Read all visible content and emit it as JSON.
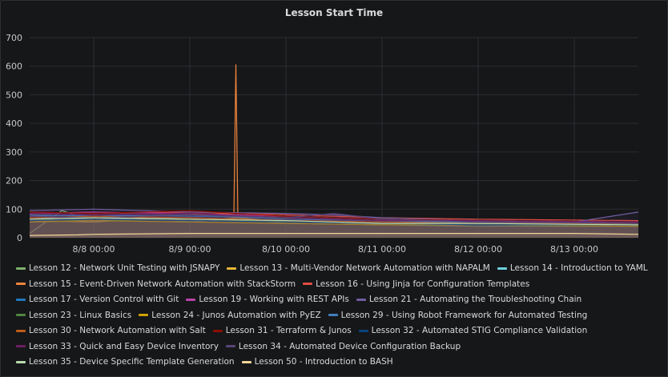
{
  "panel": {
    "title": "Lesson Start Time"
  },
  "chart_data": {
    "type": "line",
    "title": "Lesson Start Time",
    "ylim": [
      0,
      700
    ],
    "yticks": [
      0,
      100,
      200,
      300,
      400,
      500,
      600,
      700
    ],
    "xlim": [
      "2018-08-07 08:00",
      "2018-08-13 16:00"
    ],
    "xticks": [
      {
        "t": "2018-08-08 00:00",
        "label": "8/8 00:00"
      },
      {
        "t": "2018-08-09 00:00",
        "label": "8/9 00:00"
      },
      {
        "t": "2018-08-10 00:00",
        "label": "8/10 00:00"
      },
      {
        "t": "2018-08-11 00:00",
        "label": "8/11 00:00"
      },
      {
        "t": "2018-08-12 00:00",
        "label": "8/12 00:00"
      },
      {
        "t": "2018-08-13 00:00",
        "label": "8/13 00:00"
      }
    ],
    "grid": true,
    "legend_position": "bottom",
    "series": [
      {
        "name": "Lesson 12 - Network Unit Testing with JSNAPY",
        "color": "#7eb26d",
        "points": [
          [
            "2018-08-07 08:00",
            15
          ],
          [
            "2018-08-07 16:00",
            95
          ],
          [
            "2018-08-08 00:00",
            60
          ],
          [
            "2018-08-08 12:00",
            70
          ],
          [
            "2018-08-09 00:00",
            55
          ],
          [
            "2018-08-09 12:00",
            65
          ],
          [
            "2018-08-10 00:00",
            50
          ],
          [
            "2018-08-11 00:00",
            45
          ],
          [
            "2018-08-12 00:00",
            40
          ],
          [
            "2018-08-13 16:00",
            40
          ]
        ]
      },
      {
        "name": "Lesson 13 - Multi-Vendor Network Automation with NAPALM",
        "color": "#eab839",
        "points": [
          [
            "2018-08-07 08:00",
            60
          ],
          [
            "2018-08-08 00:00",
            55
          ],
          [
            "2018-08-08 12:00",
            65
          ],
          [
            "2018-08-09 00:00",
            60
          ],
          [
            "2018-08-09 12:00",
            70
          ],
          [
            "2018-08-10 00:00",
            55
          ],
          [
            "2018-08-11 00:00",
            50
          ],
          [
            "2018-08-12 00:00",
            50
          ],
          [
            "2018-08-13 00:00",
            45
          ],
          [
            "2018-08-13 16:00",
            50
          ]
        ]
      },
      {
        "name": "Lesson 14 - Introduction to YAML",
        "color": "#6ed0e0",
        "points": [
          [
            "2018-08-07 08:00",
            70
          ],
          [
            "2018-08-08 00:00",
            65
          ],
          [
            "2018-08-09 00:00",
            70
          ],
          [
            "2018-08-10 00:00",
            60
          ],
          [
            "2018-08-11 00:00",
            55
          ],
          [
            "2018-08-12 00:00",
            55
          ],
          [
            "2018-08-13 16:00",
            50
          ]
        ]
      },
      {
        "name": "Lesson 15 - Event-Driven Network Automation with StackStorm",
        "color": "#ef843c",
        "points": [
          [
            "2018-08-07 08:00",
            80
          ],
          [
            "2018-08-08 00:00",
            75
          ],
          [
            "2018-08-09 00:00",
            80
          ],
          [
            "2018-08-09 11:00",
            85
          ],
          [
            "2018-08-09 11:30",
            605
          ],
          [
            "2018-08-09 12:00",
            80
          ],
          [
            "2018-08-10 00:00",
            75
          ],
          [
            "2018-08-11 00:00",
            65
          ],
          [
            "2018-08-12 00:00",
            60
          ],
          [
            "2018-08-13 16:00",
            55
          ]
        ]
      },
      {
        "name": "Lesson 16 - Using Jinja for Configuration Templates",
        "color": "#e24d42",
        "points": [
          [
            "2018-08-07 08:00",
            90
          ],
          [
            "2018-08-08 00:00",
            85
          ],
          [
            "2018-08-09 00:00",
            90
          ],
          [
            "2018-08-10 00:00",
            80
          ],
          [
            "2018-08-11 00:00",
            70
          ],
          [
            "2018-08-12 00:00",
            65
          ],
          [
            "2018-08-13 16:00",
            60
          ]
        ]
      },
      {
        "name": "Lesson 17 - Version Control with Git",
        "color": "#1f78c1",
        "points": [
          [
            "2018-08-07 08:00",
            75
          ],
          [
            "2018-08-08 00:00",
            80
          ],
          [
            "2018-08-09 00:00",
            75
          ],
          [
            "2018-08-10 00:00",
            70
          ],
          [
            "2018-08-11 00:00",
            60
          ],
          [
            "2018-08-12 00:00",
            55
          ],
          [
            "2018-08-13 16:00",
            55
          ]
        ]
      },
      {
        "name": "Lesson 19 - Working with REST APIs",
        "color": "#ba43a9",
        "points": [
          [
            "2018-08-07 08:00",
            85
          ],
          [
            "2018-08-08 00:00",
            90
          ],
          [
            "2018-08-09 00:00",
            85
          ],
          [
            "2018-08-10 00:00",
            75
          ],
          [
            "2018-08-11 00:00",
            65
          ],
          [
            "2018-08-12 00:00",
            60
          ],
          [
            "2018-08-13 16:00",
            55
          ]
        ]
      },
      {
        "name": "Lesson 21 - Automating the Troubleshooting Chain",
        "color": "#705da0",
        "points": [
          [
            "2018-08-07 08:00",
            95
          ],
          [
            "2018-08-08 00:00",
            100
          ],
          [
            "2018-08-09 00:00",
            90
          ],
          [
            "2018-08-10 00:00",
            85
          ],
          [
            "2018-08-10 12:00",
            80
          ],
          [
            "2018-08-11 00:00",
            70
          ],
          [
            "2018-08-12 00:00",
            60
          ],
          [
            "2018-08-13 00:00",
            55
          ],
          [
            "2018-08-13 16:00",
            90
          ]
        ]
      },
      {
        "name": "Lesson 23 - Linux Basics",
        "color": "#508642",
        "points": [
          [
            "2018-08-07 08:00",
            65
          ],
          [
            "2018-08-08 00:00",
            60
          ],
          [
            "2018-08-09 00:00",
            65
          ],
          [
            "2018-08-10 00:00",
            55
          ],
          [
            "2018-08-11 00:00",
            50
          ],
          [
            "2018-08-12 00:00",
            45
          ],
          [
            "2018-08-13 16:00",
            45
          ]
        ]
      },
      {
        "name": "Lesson 24 - Junos Automation with PyEZ",
        "color": "#cca300",
        "points": [
          [
            "2018-08-07 08:00",
            55
          ],
          [
            "2018-08-08 00:00",
            60
          ],
          [
            "2018-08-09 00:00",
            55
          ],
          [
            "2018-08-10 00:00",
            50
          ],
          [
            "2018-08-11 00:00",
            45
          ],
          [
            "2018-08-12 00:00",
            45
          ],
          [
            "2018-08-13 16:00",
            40
          ]
        ]
      },
      {
        "name": "Lesson 29 - Using Robot Framework for Automated Testing",
        "color": "#447ebc",
        "points": [
          [
            "2018-08-07 08:00",
            80
          ],
          [
            "2018-08-08 00:00",
            75
          ],
          [
            "2018-08-09 00:00",
            80
          ],
          [
            "2018-08-10 00:00",
            65
          ],
          [
            "2018-08-11 00:00",
            60
          ],
          [
            "2018-08-12 00:00",
            55
          ],
          [
            "2018-08-13 16:00",
            50
          ]
        ]
      },
      {
        "name": "Lesson 30 - Network Automation with Salt",
        "color": "#c15c17",
        "points": [
          [
            "2018-08-07 08:00",
            70
          ],
          [
            "2018-08-08 00:00",
            75
          ],
          [
            "2018-08-09 00:00",
            70
          ],
          [
            "2018-08-10 00:00",
            60
          ],
          [
            "2018-08-11 00:00",
            55
          ],
          [
            "2018-08-12 00:00",
            50
          ],
          [
            "2018-08-13 16:00",
            50
          ]
        ]
      },
      {
        "name": "Lesson 31 - Terraform & Junos",
        "color": "#890f02",
        "points": [
          [
            "2018-08-07 08:00",
            90
          ],
          [
            "2018-08-08 00:00",
            85
          ],
          [
            "2018-08-09 00:00",
            95
          ],
          [
            "2018-08-10 00:00",
            75
          ],
          [
            "2018-08-11 00:00",
            65
          ],
          [
            "2018-08-12 00:00",
            60
          ],
          [
            "2018-08-13 16:00",
            55
          ]
        ]
      },
      {
        "name": "Lesson 32 - Automated STIG Compliance Validation",
        "color": "#0a437c",
        "points": [
          [
            "2018-08-07 08:00",
            60
          ],
          [
            "2018-08-08 00:00",
            65
          ],
          [
            "2018-08-09 00:00",
            60
          ],
          [
            "2018-08-10 00:00",
            55
          ],
          [
            "2018-08-11 00:00",
            50
          ],
          [
            "2018-08-12 00:00",
            45
          ],
          [
            "2018-08-13 16:00",
            45
          ]
        ]
      },
      {
        "name": "Lesson 33 - Quick and Easy Device Inventory",
        "color": "#6d1f62",
        "points": [
          [
            "2018-08-07 08:00",
            85
          ],
          [
            "2018-08-08 00:00",
            80
          ],
          [
            "2018-08-09 00:00",
            85
          ],
          [
            "2018-08-10 00:00",
            70
          ],
          [
            "2018-08-11 00:00",
            60
          ],
          [
            "2018-08-12 00:00",
            60
          ],
          [
            "2018-08-13 16:00",
            55
          ]
        ]
      },
      {
        "name": "Lesson 34 - Automated Device Configuration Backup",
        "color": "#584477",
        "points": [
          [
            "2018-08-07 08:00",
            75
          ],
          [
            "2018-08-08 00:00",
            70
          ],
          [
            "2018-08-09 00:00",
            80
          ],
          [
            "2018-08-10 00:00",
            70
          ],
          [
            "2018-08-10 12:00",
            85
          ],
          [
            "2018-08-11 00:00",
            65
          ],
          [
            "2018-08-12 00:00",
            55
          ],
          [
            "2018-08-13 16:00",
            50
          ]
        ]
      },
      {
        "name": "Lesson 35 - Device Specific Template Generation",
        "color": "#b7dbab",
        "points": [
          [
            "2018-08-07 08:00",
            65
          ],
          [
            "2018-08-08 00:00",
            70
          ],
          [
            "2018-08-09 00:00",
            65
          ],
          [
            "2018-08-10 00:00",
            60
          ],
          [
            "2018-08-11 00:00",
            50
          ],
          [
            "2018-08-12 00:00",
            50
          ],
          [
            "2018-08-13 16:00",
            45
          ]
        ]
      },
      {
        "name": "Lesson 50 - Introduction to BASH",
        "color": "#f4d598",
        "points": [
          [
            "2018-08-07 08:00",
            8
          ],
          [
            "2018-08-07 20:00",
            10
          ],
          [
            "2018-08-08 00:00",
            12
          ],
          [
            "2018-08-09 00:00",
            15
          ],
          [
            "2018-08-10 00:00",
            15
          ],
          [
            "2018-08-11 00:00",
            15
          ],
          [
            "2018-08-12 00:00",
            15
          ],
          [
            "2018-08-13 00:00",
            15
          ],
          [
            "2018-08-13 16:00",
            12
          ]
        ]
      }
    ]
  }
}
